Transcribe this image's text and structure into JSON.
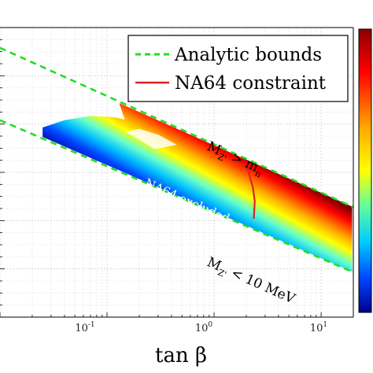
{
  "chart_data": {
    "type": "scatter",
    "xscale": "log",
    "xlim": [
      0.01,
      20
    ],
    "xticks": [
      {
        "value": 0.1,
        "base": "10",
        "exp": "-1"
      },
      {
        "value": 1,
        "base": "10",
        "exp": "0"
      },
      {
        "value": 10,
        "base": "10",
        "exp": "1"
      }
    ],
    "xlabel": "tan β",
    "ylabel": "",
    "grid": true,
    "legend_position": "top-right",
    "legend": [
      {
        "label": "Analytic bounds",
        "color": "#22dd22",
        "style": "dashed"
      },
      {
        "label": "NA64 constraint",
        "color": "#dd2222",
        "style": "solid"
      }
    ],
    "annotations": {
      "upper": {
        "main": "M",
        "sub": "Z'",
        "rel": " > m",
        "sub2": "π"
      },
      "lower": {
        "main": "M",
        "sub": "Z'",
        "rel": " < 10 MeV"
      },
      "excluded": "NA64 excluded"
    },
    "colormap": "jet",
    "series": [
      {
        "name": "Analytic bounds",
        "x": [
          0.01,
          20
        ],
        "upper_y_frac": [
          0.07,
          0.62
        ],
        "lower_y_frac": [
          0.32,
          0.845
        ]
      },
      {
        "name": "NA64 constraint",
        "x": [
          1.9,
          2.1,
          2.3,
          2.4,
          2.35
        ],
        "y_frac": [
          0.47,
          0.5,
          0.55,
          0.6,
          0.66
        ]
      }
    ]
  }
}
